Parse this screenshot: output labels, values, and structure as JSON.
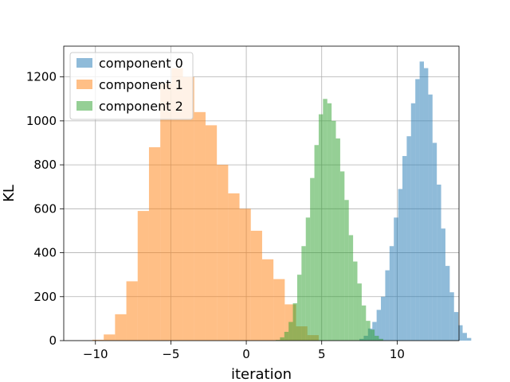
{
  "chart_data": {
    "type": "histogram",
    "title": "",
    "xlabel": "iteration",
    "ylabel": "KL",
    "xlim": [
      -12.1,
      14.1
    ],
    "ylim": [
      0,
      1340
    ],
    "x_ticks": [
      -10,
      -5,
      0,
      5,
      10
    ],
    "x_tick_labels": [
      "−10",
      "−5",
      "0",
      "5",
      "10"
    ],
    "y_ticks": [
      0,
      200,
      400,
      600,
      800,
      1000,
      1200
    ],
    "y_tick_labels": [
      "0",
      "200",
      "400",
      "600",
      "800",
      "1000",
      "1200"
    ],
    "grid": true,
    "legend_position": "top-left",
    "series": [
      {
        "name": "component 0",
        "color": "#1f77b4",
        "alpha": 0.5,
        "bin_start": 7.5,
        "bin_width": 0.285,
        "counts": [
          8,
          22,
          55,
          85,
          140,
          200,
          320,
          430,
          560,
          690,
          840,
          930,
          1080,
          1190,
          1270,
          1240,
          1120,
          900,
          710,
          510,
          340,
          220,
          130,
          70,
          35,
          12
        ]
      },
      {
        "name": "component 1",
        "color": "#ff7f0e",
        "alpha": 0.5,
        "bin_start": -10.2,
        "bin_width": 0.75,
        "counts": [
          4,
          28,
          120,
          270,
          590,
          880,
          1170,
          1240,
          1200,
          1040,
          980,
          800,
          670,
          600,
          500,
          370,
          280,
          165,
          65,
          25
        ]
      },
      {
        "name": "component 2",
        "color": "#2ca02c",
        "alpha": 0.5,
        "bin_start": 1.95,
        "bin_width": 0.285,
        "counts": [
          3,
          15,
          40,
          85,
          170,
          300,
          430,
          560,
          740,
          890,
          1030,
          1100,
          1080,
          1000,
          920,
          770,
          640,
          480,
          360,
          260,
          160,
          90,
          50,
          22,
          8
        ]
      }
    ]
  }
}
